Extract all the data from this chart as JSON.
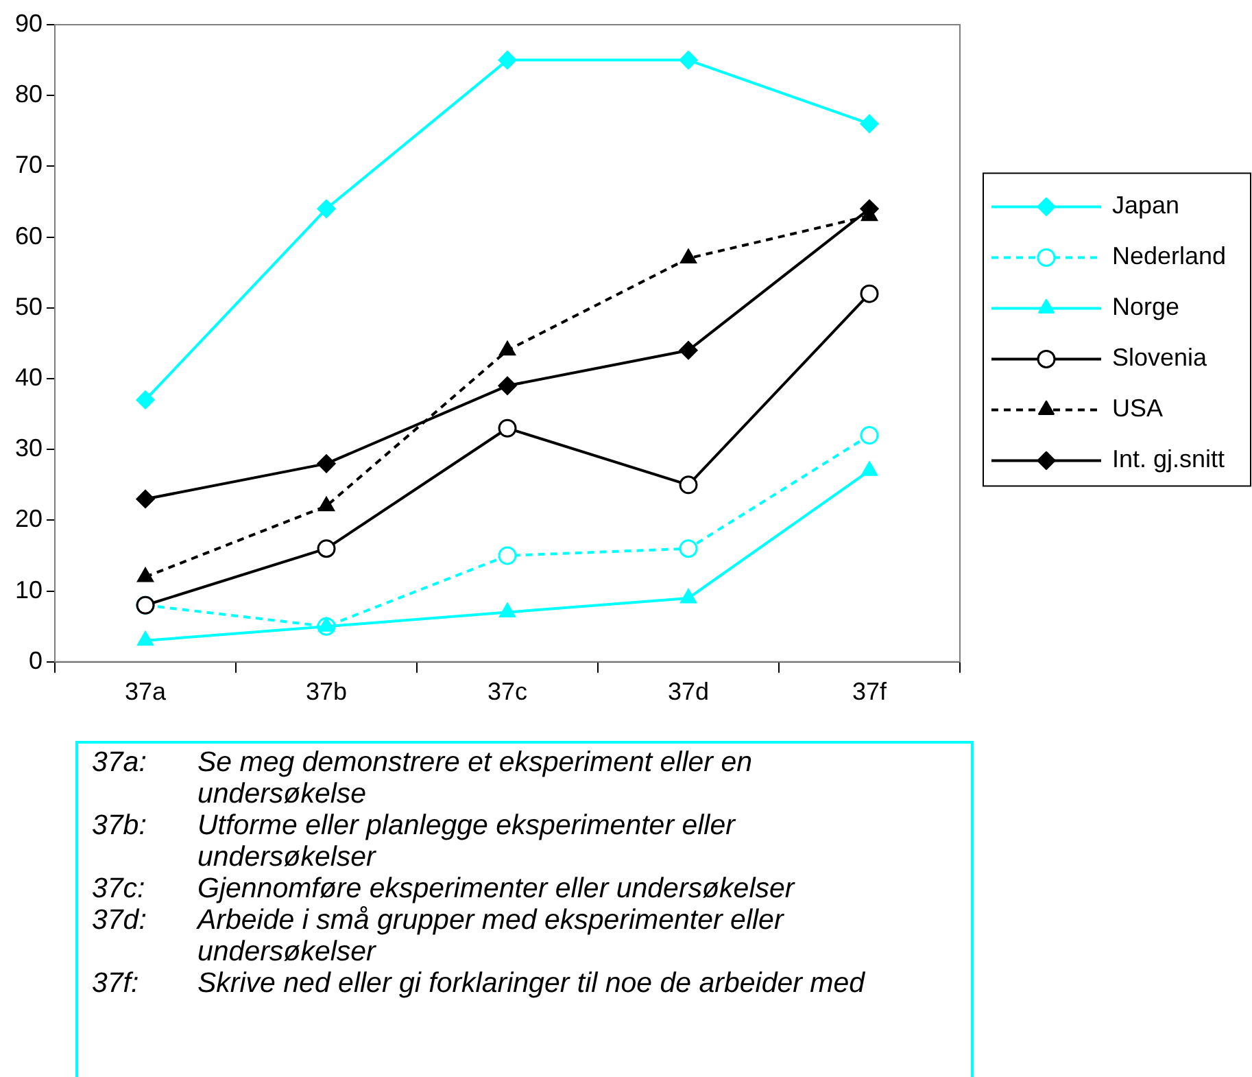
{
  "chart_data": {
    "type": "line",
    "categories": [
      "37a",
      "37b",
      "37c",
      "37d",
      "37f"
    ],
    "series": [
      {
        "name": "Japan",
        "color": "#00ffff",
        "marker": "diamond",
        "line_style": "solid",
        "values": [
          37,
          64,
          85,
          85,
          76
        ]
      },
      {
        "name": "Nederland",
        "color": "#00ffff",
        "marker": "circle",
        "line_style": "dashed",
        "values": [
          8,
          5,
          15,
          16,
          32
        ]
      },
      {
        "name": "Norge",
        "color": "#00ffff",
        "marker": "triangle",
        "line_style": "solid",
        "values": [
          3,
          5,
          7,
          9,
          27
        ]
      },
      {
        "name": "Slovenia",
        "color": "#000000",
        "marker": "circle",
        "line_style": "solid",
        "values": [
          8,
          16,
          33,
          25,
          52
        ]
      },
      {
        "name": "USA",
        "color": "#000000",
        "marker": "triangle",
        "line_style": "dashed",
        "values": [
          12,
          22,
          44,
          57,
          63
        ]
      },
      {
        "name": "Int. gj.snitt",
        "color": "#000000",
        "marker": "diamond",
        "line_style": "solid",
        "values": [
          23,
          28,
          39,
          44,
          64
        ]
      }
    ],
    "ylim": [
      0,
      90
    ],
    "yticks": [
      0,
      10,
      20,
      30,
      40,
      50,
      60,
      70,
      80,
      90
    ],
    "grid": false,
    "legend": "right",
    "annotations": [
      "37a: Se meg demonstrere et eksperiment eller en undersøkelse",
      "37b: Utforme eller planlegge eksperimenter eller undersøkelser",
      "37c: Gjennomføre eksperimenter eller undersøkelser",
      "37d: Arbeide i små grupper med eksperimenter eller undersøkelser",
      "37f: Skrive ned eller gi forklaringer til noe de arbeider med"
    ]
  }
}
